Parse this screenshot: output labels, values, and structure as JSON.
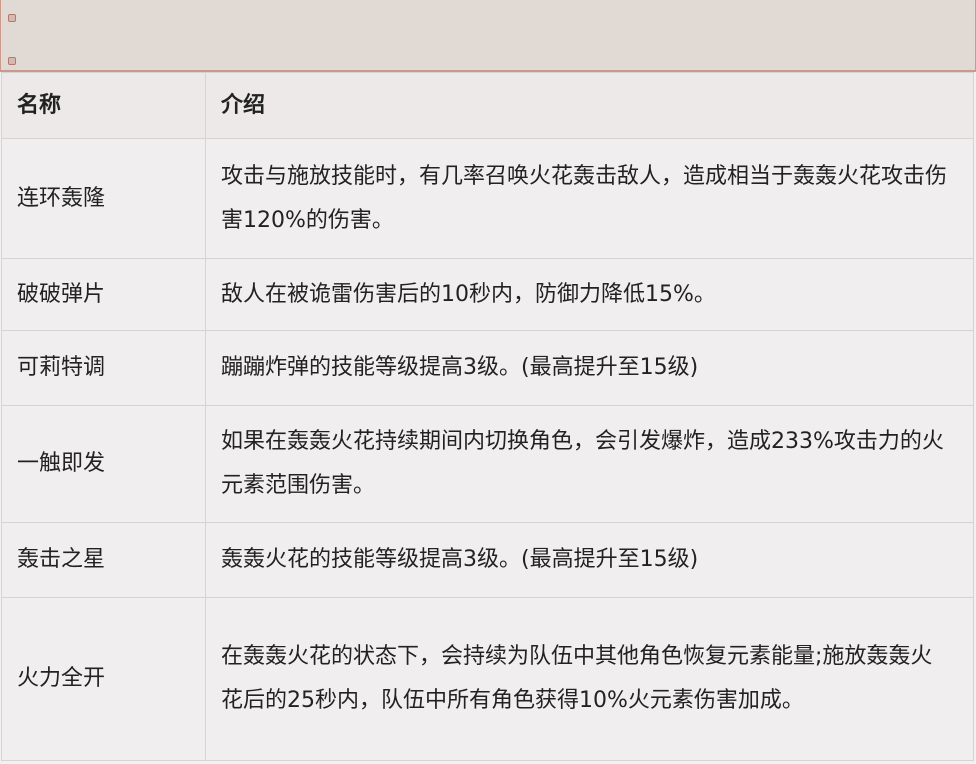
{
  "table": {
    "headers": [
      "名称",
      "介绍"
    ],
    "rows": [
      {
        "name": "连环轰隆",
        "desc": "攻击与施放技能时，有几率召唤火花轰击敌人，造成相当于轰轰火花攻击伤害120%的伤害。"
      },
      {
        "name": "破破弹片",
        "desc": "敌人在被诡雷伤害后的10秒内，防御力降低15%。"
      },
      {
        "name": "可莉特调",
        "desc": "蹦蹦炸弹的技能等级提高3级。(最高提升至15级)"
      },
      {
        "name": "一触即发",
        "desc": "如果在轰轰火花持续期间内切换角色，会引发爆炸，造成233%攻击力的火元素范围伤害。"
      },
      {
        "name": "轰击之星",
        "desc": "轰轰火花的技能等级提高3级。(最高提升至15级)"
      },
      {
        "name": "火力全开",
        "desc": "在轰轰火花的状态下，会持续为队伍中其他角色恢复元素能量;施放轰轰火花后的25秒内，队伍中所有角色获得10%火元素伤害加成。"
      }
    ]
  }
}
